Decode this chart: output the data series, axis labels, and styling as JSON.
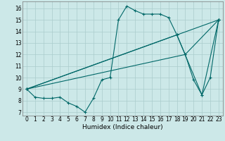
{
  "title": "",
  "xlabel": "Humidex (Indice chaleur)",
  "background_color": "#cce8e8",
  "line_color": "#006868",
  "grid_color": "#aacccc",
  "xlim": [
    -0.5,
    23.5
  ],
  "ylim": [
    6.7,
    16.6
  ],
  "yticks": [
    7,
    8,
    9,
    10,
    11,
    12,
    13,
    14,
    15,
    16
  ],
  "xticks": [
    0,
    1,
    2,
    3,
    4,
    5,
    6,
    7,
    8,
    9,
    10,
    11,
    12,
    13,
    14,
    15,
    16,
    17,
    18,
    19,
    20,
    21,
    22,
    23
  ],
  "series": [
    [
      0,
      9.0
    ],
    [
      1,
      8.3
    ],
    [
      2,
      8.2
    ],
    [
      3,
      8.2
    ],
    [
      4,
      8.3
    ],
    [
      5,
      7.8
    ],
    [
      6,
      7.5
    ],
    [
      7,
      7.0
    ],
    [
      8,
      8.2
    ],
    [
      9,
      9.8
    ],
    [
      10,
      10.0
    ],
    [
      11,
      15.0
    ],
    [
      12,
      16.2
    ],
    [
      13,
      15.8
    ],
    [
      14,
      15.5
    ],
    [
      15,
      15.5
    ],
    [
      16,
      15.5
    ],
    [
      17,
      15.2
    ],
    [
      18,
      13.7
    ],
    [
      19,
      12.0
    ],
    [
      20,
      9.8
    ],
    [
      21,
      8.5
    ],
    [
      22,
      10.0
    ],
    [
      23,
      15.0
    ]
  ],
  "line2": [
    [
      0,
      9.0
    ],
    [
      23,
      15.0
    ]
  ],
  "line3": [
    [
      0,
      9.0
    ],
    [
      18,
      13.7
    ],
    [
      21,
      8.5
    ],
    [
      23,
      15.0
    ]
  ],
  "line4": [
    [
      0,
      9.0
    ],
    [
      19,
      12.0
    ],
    [
      23,
      15.0
    ]
  ],
  "tick_fontsize": 5.5,
  "xlabel_fontsize": 6.5,
  "lw": 0.8,
  "ms": 2.5
}
